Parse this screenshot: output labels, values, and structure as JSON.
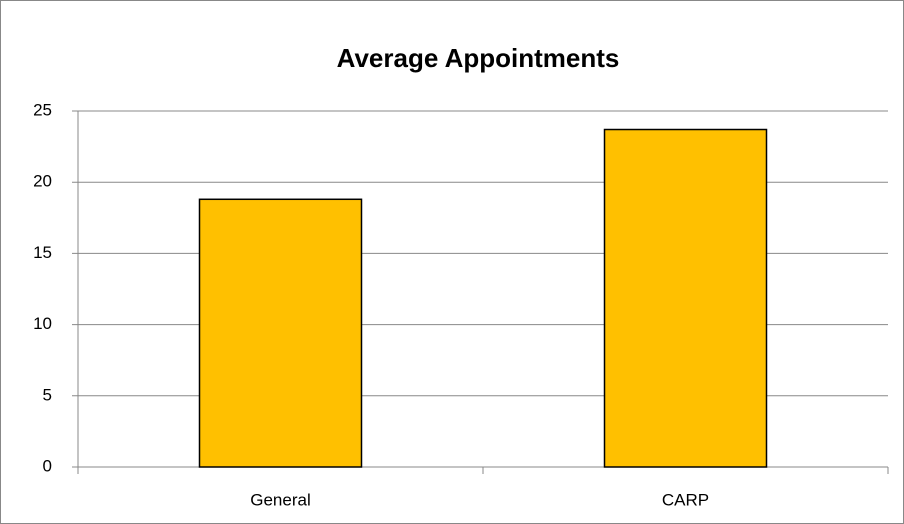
{
  "chart_data": {
    "type": "bar",
    "title": "Average Appointments",
    "categories": [
      "General",
      "CARP"
    ],
    "values": [
      18.8,
      23.7
    ],
    "color": "#ffc000",
    "ylim": [
      0,
      25
    ],
    "yticks": [
      0,
      5,
      10,
      15,
      20,
      25
    ],
    "grid": true
  }
}
